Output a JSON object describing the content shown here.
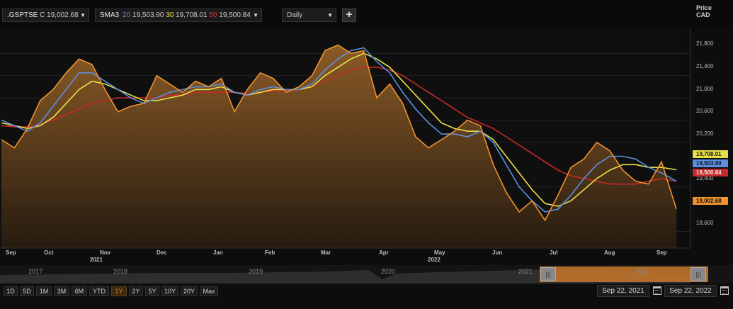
{
  "toolbar": {
    "ric_symbol": ".GSPTSE",
    "ric_value": "C 19,002.68",
    "sma_label": "SMA3",
    "sma": [
      {
        "period": "20",
        "value": "19,503.90"
      },
      {
        "period": "30",
        "value": "19,708.01"
      },
      {
        "period": "50",
        "value": "19,500.84"
      }
    ],
    "interval": "Daily",
    "add_label": "+"
  },
  "axis_header": {
    "line1": "Price",
    "line2": "CAD"
  },
  "last_values": {
    "sma30": "19,708.01",
    "sma20": "19,503.90",
    "sma50": "19,500.84",
    "price": "19,002.68"
  },
  "x_axis": {
    "months": [
      "Sep",
      "Oct",
      "Nov",
      "Dec",
      "Jan",
      "Feb",
      "Mar",
      "Apr",
      "May",
      "Jun",
      "Jul",
      "Aug",
      "Sep"
    ],
    "years": [
      "2021",
      "2022"
    ]
  },
  "navigator": {
    "years": [
      "2017",
      "2018",
      "2019",
      "2020",
      "2021",
      "2022"
    ]
  },
  "ranges": [
    "1D",
    "5D",
    "1M",
    "3M",
    "6M",
    "YTD",
    "1Y",
    "2Y",
    "5Y",
    "10Y",
    "20Y",
    "Max"
  ],
  "active_range": "1Y",
  "dates": {
    "start": "Sep 22, 2021",
    "end": "Sep 22, 2022"
  },
  "colors": {
    "price": "#f0922e",
    "sma20": "#5b8fe0",
    "sma30": "#e8e04a",
    "sma50": "#c42a2a"
  },
  "chart_data": {
    "type": "line",
    "ylabel": "Price CAD",
    "ylim": [
      18300,
      22250
    ],
    "yticks": [
      18600,
      19400,
      20200,
      20600,
      21000,
      21400,
      21800
    ],
    "ytick_labels": [
      "18,600",
      "19,400",
      "20,200",
      "20,600",
      "21,000",
      "21,400",
      "21,800"
    ],
    "x": [
      "2021-09-22",
      "2021-09-29",
      "2021-10-06",
      "2021-10-13",
      "2021-10-20",
      "2021-10-27",
      "2021-11-03",
      "2021-11-10",
      "2021-11-17",
      "2021-11-24",
      "2021-12-01",
      "2021-12-08",
      "2021-12-15",
      "2021-12-22",
      "2021-12-29",
      "2022-01-05",
      "2022-01-12",
      "2022-01-19",
      "2022-01-26",
      "2022-02-02",
      "2022-02-09",
      "2022-02-16",
      "2022-02-23",
      "2022-03-02",
      "2022-03-09",
      "2022-03-16",
      "2022-03-23",
      "2022-03-30",
      "2022-04-06",
      "2022-04-13",
      "2022-04-20",
      "2022-04-27",
      "2022-05-04",
      "2022-05-11",
      "2022-05-18",
      "2022-05-25",
      "2022-06-01",
      "2022-06-08",
      "2022-06-15",
      "2022-06-22",
      "2022-06-29",
      "2022-07-06",
      "2022-07-13",
      "2022-07-20",
      "2022-07-27",
      "2022-08-03",
      "2022-08-10",
      "2022-08-17",
      "2022-08-24",
      "2022-08-31",
      "2022-09-07",
      "2022-09-14",
      "2022-09-22"
    ],
    "series": [
      {
        "name": ".GSPTSE",
        "values": [
          20250,
          20100,
          20450,
          20950,
          21150,
          21450,
          21700,
          21600,
          21150,
          20750,
          20850,
          20900,
          21400,
          21250,
          21100,
          21300,
          21200,
          21350,
          20750,
          21150,
          21450,
          21350,
          21100,
          21200,
          21400,
          21850,
          21950,
          21800,
          21850,
          21000,
          21250,
          20900,
          20300,
          20100,
          20250,
          20400,
          20600,
          20500,
          19800,
          19300,
          18950,
          19150,
          18800,
          19250,
          19750,
          19900,
          20200,
          20050,
          19700,
          19500,
          19450,
          19850,
          19002.68
        ]
      },
      {
        "name": "SMA 20",
        "values": [
          20600,
          20500,
          20400,
          20550,
          20850,
          21150,
          21450,
          21450,
          21300,
          21150,
          21000,
          20900,
          21000,
          21100,
          21150,
          21200,
          21200,
          21250,
          21100,
          21050,
          21150,
          21200,
          21150,
          21150,
          21250,
          21500,
          21700,
          21850,
          21900,
          21650,
          21450,
          21100,
          20800,
          20550,
          20350,
          20350,
          20300,
          20400,
          20200,
          19800,
          19400,
          19150,
          18950,
          19000,
          19250,
          19550,
          19800,
          19950,
          19950,
          19900,
          19750,
          19650,
          19503.9
        ]
      },
      {
        "name": "SMA 30",
        "values": [
          20550,
          20500,
          20450,
          20500,
          20650,
          20900,
          21150,
          21300,
          21250,
          21150,
          21050,
          20950,
          20950,
          21000,
          21050,
          21150,
          21150,
          21200,
          21100,
          21050,
          21100,
          21150,
          21150,
          21150,
          21200,
          21400,
          21550,
          21700,
          21800,
          21700,
          21550,
          21300,
          21050,
          20800,
          20550,
          20450,
          20400,
          20400,
          20250,
          19950,
          19650,
          19350,
          19100,
          19050,
          19150,
          19350,
          19550,
          19700,
          19800,
          19800,
          19750,
          19750,
          19708.01
        ]
      },
      {
        "name": "SMA 50",
        "values": [
          20500,
          20480,
          20480,
          20520,
          20600,
          20700,
          20800,
          20900,
          20950,
          21000,
          21000,
          21000,
          21000,
          21050,
          21050,
          21100,
          21100,
          21100,
          21100,
          21080,
          21100,
          21120,
          21130,
          21150,
          21200,
          21300,
          21400,
          21500,
          21550,
          21550,
          21500,
          21400,
          21250,
          21100,
          20950,
          20800,
          20650,
          20550,
          20450,
          20300,
          20150,
          20000,
          19850,
          19700,
          19600,
          19550,
          19500,
          19450,
          19450,
          19450,
          19500,
          19550,
          19500.84
        ]
      }
    ]
  }
}
